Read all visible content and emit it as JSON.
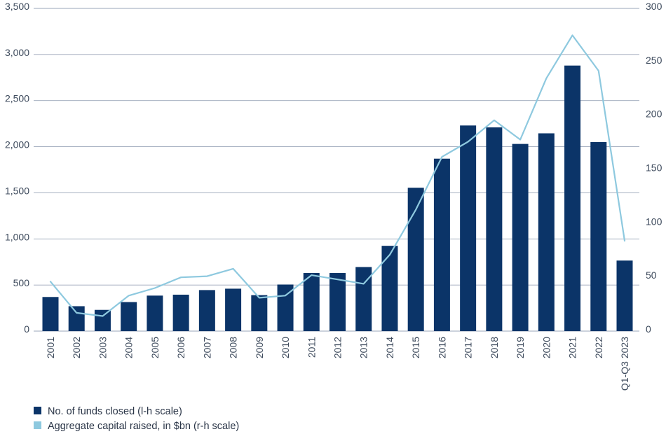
{
  "chart_data": {
    "type": "bar",
    "title": "",
    "xlabel": "",
    "ylabel": "",
    "categories": [
      "2001",
      "2002",
      "2003",
      "2004",
      "2005",
      "2006",
      "2007",
      "2008",
      "2009",
      "2010",
      "2011",
      "2012",
      "2013",
      "2014",
      "2015",
      "2016",
      "2017",
      "2018",
      "2019",
      "2020",
      "2021",
      "2022",
      "Q1-Q3 2023"
    ],
    "series": [
      {
        "name": "No. of funds closed (l-h scale)",
        "type": "bar",
        "axis": "left",
        "color": "#0b3468",
        "values": [
          370,
          270,
          230,
          315,
          385,
          395,
          445,
          460,
          390,
          505,
          630,
          630,
          695,
          925,
          1555,
          1870,
          2230,
          2210,
          2030,
          2145,
          2880,
          2050,
          765
        ]
      },
      {
        "name": "Aggregate capital raised, in $bn (r-h scale)",
        "type": "line",
        "axis": "right",
        "color": "#8ec9df",
        "values": [
          46,
          17,
          14,
          33,
          40,
          50,
          51,
          58,
          31,
          33,
          52,
          48,
          44,
          71,
          113,
          162,
          176,
          196,
          178,
          235,
          275,
          242,
          84
        ]
      }
    ],
    "ylim_left": [
      0,
      3500
    ],
    "ylim_right": [
      0,
      300
    ],
    "yticks_left": [
      "0",
      "500",
      "1,000",
      "1,500",
      "2,000",
      "2,500",
      "3,000",
      "3,500"
    ],
    "yticks_right": [
      "0",
      "50",
      "100",
      "150",
      "200",
      "250",
      "300"
    ],
    "grid": true,
    "legend": {
      "placement": "bottom-left",
      "items": [
        {
          "label": "No. of funds closed (l-h scale)",
          "color": "#0b3468"
        },
        {
          "label": "Aggregate capital raised, in $bn (r-h scale)",
          "color": "#8ec9df"
        }
      ]
    }
  }
}
